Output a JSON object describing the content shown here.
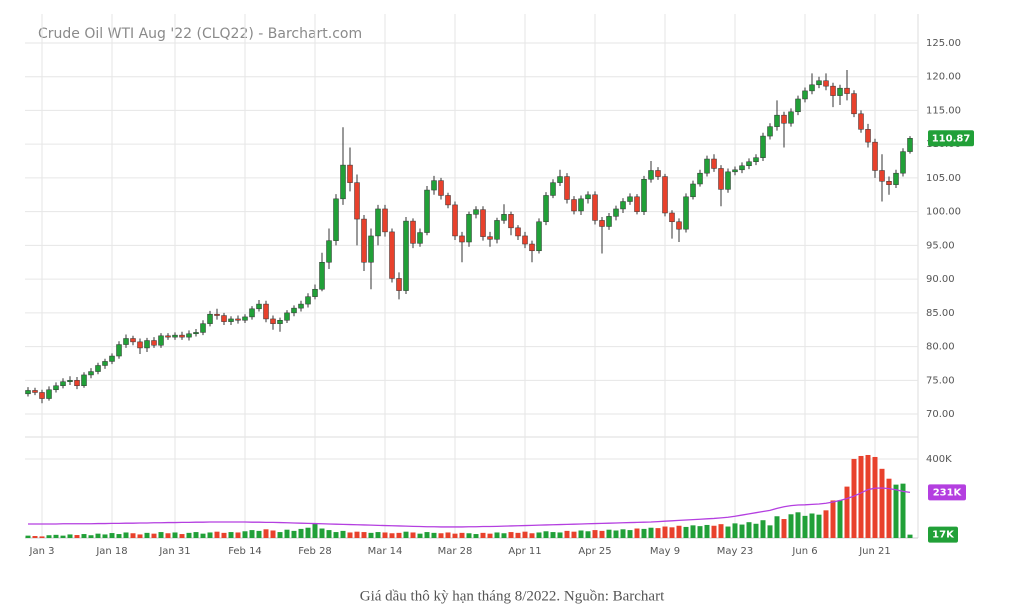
{
  "chart_data": {
    "type": "candlestick",
    "title": "Crude Oil WTI Aug '22 (CLQ22) - Barchart.com",
    "categories": [
      null,
      null,
      "Jan 3",
      null,
      null,
      null,
      null,
      null,
      null,
      null,
      null,
      null,
      "Jan 18",
      null,
      null,
      null,
      null,
      null,
      null,
      null,
      null,
      "Jan 31",
      null,
      null,
      null,
      null,
      null,
      null,
      null,
      null,
      null,
      "Feb 14",
      null,
      null,
      null,
      null,
      null,
      null,
      null,
      null,
      null,
      "Feb 28",
      null,
      null,
      null,
      null,
      null,
      null,
      null,
      null,
      null,
      "Mar 14",
      null,
      null,
      null,
      null,
      null,
      null,
      null,
      null,
      null,
      "Mar 28",
      null,
      null,
      null,
      null,
      null,
      null,
      null,
      null,
      null,
      "Apr 11",
      null,
      null,
      null,
      null,
      null,
      null,
      null,
      null,
      null,
      "Apr 25",
      null,
      null,
      null,
      null,
      null,
      null,
      null,
      null,
      null,
      "May 9",
      null,
      null,
      null,
      null,
      null,
      null,
      null,
      null,
      null,
      "May 23",
      null,
      null,
      null,
      null,
      null,
      null,
      null,
      null,
      null,
      "Jun 6",
      null,
      null,
      null,
      null,
      null,
      null,
      null,
      null,
      null,
      "Jun 21",
      null,
      null,
      null,
      null,
      null
    ],
    "open": [
      73.0,
      73.5,
      73.2,
      72.3,
      73.6,
      74.2,
      74.8,
      75.0,
      74.2,
      75.8,
      76.3,
      77.2,
      77.8,
      78.6,
      80.3,
      81.2,
      80.7,
      79.8,
      80.9,
      80.2,
      81.6,
      81.4,
      81.7,
      81.4,
      81.9,
      82.1,
      83.4,
      84.8,
      84.6,
      83.7,
      84.1,
      83.9,
      84.4,
      85.6,
      86.3,
      84.1,
      83.4,
      83.9,
      85.0,
      85.7,
      86.3,
      87.4,
      88.5,
      92.5,
      95.7,
      101.9,
      106.9,
      104.3,
      98.9,
      92.5,
      96.4,
      100.4,
      97.0,
      90.1,
      88.3,
      98.6,
      95.3,
      96.9,
      103.2,
      104.6,
      102.4,
      101.0,
      96.4,
      95.5,
      99.6,
      100.3,
      96.3,
      95.9,
      98.7,
      99.6,
      97.6,
      96.4,
      95.2,
      94.2,
      98.5,
      102.4,
      104.3,
      105.2,
      101.8,
      100.1,
      101.9,
      102.5,
      98.7,
      97.8,
      99.3,
      100.4,
      101.5,
      102.2,
      100.0,
      104.8,
      106.1,
      105.2,
      99.8,
      98.5,
      97.4,
      102.2,
      104.1,
      105.7,
      107.8,
      106.4,
      103.3,
      105.9,
      106.2,
      106.8,
      107.4,
      108.0,
      111.2,
      112.6,
      114.3,
      113.1,
      114.8,
      116.7,
      117.9,
      118.8,
      119.4,
      118.6,
      117.2,
      118.3,
      117.5,
      114.5,
      112.2,
      110.3,
      106.1,
      104.5,
      104.0,
      105.7,
      108.9
    ],
    "high": [
      74.0,
      73.9,
      73.6,
      74.1,
      74.7,
      75.3,
      75.6,
      75.5,
      76.2,
      76.8,
      77.6,
      78.2,
      79.0,
      80.8,
      81.8,
      81.6,
      81.2,
      81.3,
      81.4,
      82.0,
      82.0,
      82.1,
      82.2,
      82.4,
      82.6,
      83.9,
      85.3,
      85.6,
      85.0,
      84.5,
      84.6,
      84.8,
      86.0,
      86.9,
      86.8,
      84.6,
      84.3,
      85.4,
      86.1,
      86.8,
      87.9,
      89.2,
      93.9,
      97.5,
      102.6,
      112.5,
      109.5,
      105.5,
      99.5,
      97.5,
      101.0,
      101.0,
      97.5,
      91.0,
      99.2,
      99.0,
      97.5,
      103.8,
      105.3,
      105.0,
      102.8,
      101.5,
      97.0,
      100.0,
      100.8,
      100.8,
      97.0,
      99.1,
      101.1,
      100.0,
      98.0,
      97.0,
      95.7,
      99.0,
      102.9,
      104.8,
      106.2,
      105.7,
      102.3,
      102.4,
      103.0,
      103.0,
      99.2,
      99.8,
      100.9,
      102.0,
      102.7,
      102.6,
      105.3,
      107.5,
      106.6,
      105.6,
      100.2,
      99.0,
      102.7,
      104.6,
      106.2,
      108.3,
      108.5,
      106.9,
      106.4,
      106.7,
      107.3,
      107.9,
      108.5,
      111.7,
      113.1,
      116.5,
      114.8,
      115.3,
      117.2,
      118.4,
      120.5,
      120.0,
      120.5,
      119.1,
      118.8,
      121.0,
      118.0,
      115.0,
      113.0,
      110.8,
      108.5,
      105.2,
      106.2,
      109.4,
      111.2
    ],
    "low": [
      72.6,
      72.8,
      71.6,
      72.0,
      73.2,
      73.8,
      74.3,
      73.7,
      73.9,
      75.3,
      75.9,
      76.7,
      77.4,
      78.2,
      79.8,
      80.2,
      78.9,
      79.2,
      79.8,
      79.8,
      81.0,
      81.0,
      81.0,
      80.9,
      81.5,
      81.7,
      83.0,
      84.0,
      83.2,
      83.2,
      83.4,
      83.5,
      84.0,
      85.2,
      83.6,
      82.5,
      82.2,
      83.5,
      84.5,
      85.2,
      85.8,
      87.0,
      88.2,
      91.5,
      95.0,
      101.0,
      103.0,
      95.0,
      91.2,
      88.5,
      95.0,
      96.3,
      89.5,
      87.0,
      87.8,
      94.6,
      94.8,
      96.5,
      102.5,
      101.8,
      100.5,
      95.8,
      92.5,
      94.8,
      99.0,
      95.7,
      94.8,
      95.3,
      98.2,
      96.5,
      95.8,
      94.6,
      92.5,
      93.8,
      98.0,
      102.0,
      103.8,
      101.2,
      99.6,
      99.5,
      101.2,
      98.1,
      93.8,
      97.3,
      98.7,
      99.8,
      101.0,
      99.6,
      99.5,
      104.3,
      104.7,
      99.3,
      96.0,
      95.5,
      96.9,
      101.8,
      103.7,
      105.2,
      105.9,
      100.8,
      102.8,
      105.4,
      105.7,
      106.3,
      106.9,
      107.5,
      110.7,
      112.0,
      109.5,
      112.6,
      114.3,
      116.2,
      117.4,
      118.3,
      118.0,
      115.5,
      115.8,
      116.5,
      114.0,
      111.7,
      109.5,
      105.0,
      101.5,
      102.5,
      103.5,
      105.2,
      108.6
    ],
    "close": [
      73.5,
      73.2,
      72.3,
      73.6,
      74.2,
      74.8,
      75.0,
      74.2,
      75.8,
      76.3,
      77.2,
      77.8,
      78.6,
      80.3,
      81.2,
      80.7,
      79.8,
      80.9,
      80.2,
      81.6,
      81.4,
      81.7,
      81.4,
      81.9,
      82.1,
      83.4,
      84.8,
      84.6,
      83.7,
      84.1,
      83.9,
      84.4,
      85.6,
      86.3,
      84.1,
      83.4,
      83.9,
      85.0,
      85.7,
      86.3,
      87.4,
      88.5,
      92.5,
      95.7,
      101.9,
      106.9,
      104.3,
      98.9,
      92.5,
      96.4,
      100.4,
      97.0,
      90.1,
      88.3,
      98.6,
      95.3,
      96.9,
      103.2,
      104.6,
      102.4,
      101.0,
      96.4,
      95.5,
      99.6,
      100.3,
      96.3,
      95.9,
      98.7,
      99.6,
      97.6,
      96.4,
      95.2,
      94.2,
      98.5,
      102.4,
      104.3,
      105.2,
      101.8,
      100.1,
      101.9,
      102.5,
      98.7,
      97.8,
      99.3,
      100.4,
      101.5,
      102.2,
      100.0,
      104.8,
      106.1,
      105.2,
      99.8,
      98.5,
      97.4,
      102.2,
      104.1,
      105.7,
      107.8,
      106.4,
      103.3,
      105.9,
      106.2,
      106.8,
      107.4,
      108.0,
      111.2,
      112.6,
      114.3,
      113.1,
      114.8,
      116.7,
      117.9,
      118.8,
      119.4,
      118.6,
      117.2,
      118.3,
      117.5,
      114.5,
      112.2,
      110.3,
      106.1,
      104.5,
      104.0,
      105.7,
      108.9,
      110.87
    ],
    "up_color": "#21a038",
    "down_color": "#e8412c",
    "ylim": [
      66.6,
      128.7
    ],
    "yticks": [
      {
        "value": 70,
        "label": "70.00"
      },
      {
        "value": 75,
        "label": "75.00"
      },
      {
        "value": 80,
        "label": "80.00"
      },
      {
        "value": 85,
        "label": "85.00"
      },
      {
        "value": 90,
        "label": "90.00"
      },
      {
        "value": 95,
        "label": "95.00"
      },
      {
        "value": 100,
        "label": "100.00"
      },
      {
        "value": 105,
        "label": "105.00"
      },
      {
        "value": 110,
        "label": "110.00"
      },
      {
        "value": 115,
        "label": "115.00"
      },
      {
        "value": 120,
        "label": "120.00"
      },
      {
        "value": 125,
        "label": "125.00"
      }
    ],
    "grid": true,
    "volume": {
      "values": [
        12,
        10,
        8,
        14,
        16,
        12,
        18,
        15,
        20,
        14,
        22,
        18,
        25,
        20,
        28,
        24,
        18,
        26,
        22,
        30,
        24,
        28,
        20,
        26,
        30,
        22,
        28,
        32,
        26,
        30,
        28,
        34,
        40,
        36,
        44,
        38,
        30,
        42,
        36,
        46,
        52,
        75,
        48,
        40,
        30,
        36,
        28,
        32,
        30,
        26,
        30,
        28,
        24,
        26,
        32,
        28,
        22,
        30,
        26,
        24,
        28,
        22,
        26,
        24,
        20,
        26,
        22,
        28,
        24,
        30,
        26,
        32,
        24,
        28,
        34,
        30,
        28,
        36,
        32,
        38,
        34,
        40,
        36,
        42,
        38,
        44,
        40,
        48,
        46,
        52,
        50,
        58,
        54,
        62,
        56,
        64,
        60,
        66,
        62,
        70,
        58,
        74,
        68,
        80,
        72,
        90,
        64,
        110,
        96,
        120,
        130,
        112,
        124,
        118,
        140,
        190,
        190,
        260,
        400,
        415,
        420,
        410,
        350,
        300,
        270,
        275,
        17
      ],
      "last_label": "17K",
      "ylim": [
        0,
        511
      ],
      "yticks": [
        {
          "value": 400,
          "label": "400K"
        }
      ],
      "ma": {
        "color": "#b43fe0",
        "last_label": "231K",
        "values": [
          71,
          71,
          71,
          71,
          71,
          72,
          72,
          72,
          72,
          72,
          73,
          73,
          74,
          74,
          75,
          75,
          76,
          76,
          77,
          77,
          78,
          78,
          79,
          79,
          80,
          80,
          81,
          81,
          81,
          81,
          81,
          81,
          80,
          80,
          79,
          79,
          78,
          77,
          76,
          75,
          74,
          73,
          72,
          71,
          70,
          69,
          68,
          67,
          66,
          65,
          64,
          63,
          62,
          61,
          60,
          59,
          58,
          57,
          57,
          56,
          56,
          56,
          56,
          57,
          57,
          58,
          58,
          59,
          60,
          61,
          62,
          63,
          64,
          65,
          66,
          67,
          68,
          69,
          70,
          71,
          72,
          73,
          74,
          75,
          76,
          77,
          78,
          79,
          80,
          81,
          83,
          85,
          87,
          89,
          91,
          93,
          95,
          97,
          99,
          102,
          105,
          110,
          116,
          122,
          128,
          134,
          140,
          150,
          158,
          164,
          167,
          168,
          170,
          172,
          176,
          182,
          190,
          200,
          212,
          228,
          245,
          252,
          253,
          250,
          244,
          236,
          231
        ]
      }
    }
  },
  "caption": "Giá dầu thô kỳ hạn tháng 8/2022. Nguồn: Barchart"
}
